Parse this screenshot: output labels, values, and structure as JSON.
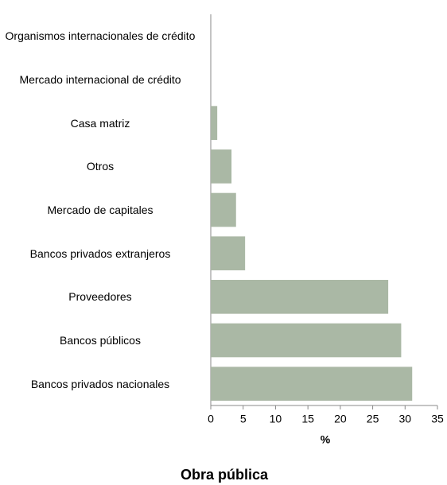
{
  "chart_data": {
    "type": "bar",
    "orientation": "horizontal",
    "title": "Obra pública",
    "x_label": "%",
    "categories": [
      "Organismos internacionales de crédito",
      "Mercado internacional de crédito",
      "Casa matriz",
      "Otros",
      "Mercado de capitales",
      "Bancos privados extranjeros",
      "Proveedores",
      "Bancos públicos",
      "Bancos privados nacionales"
    ],
    "values": [
      0,
      0,
      1.0,
      3.2,
      3.9,
      5.3,
      27.4,
      29.4,
      31.1
    ],
    "color": "#aab8a5",
    "xlim": [
      0,
      35
    ],
    "xticks": [
      0,
      5,
      10,
      15,
      20,
      25,
      30,
      35
    ],
    "grid": false
  }
}
